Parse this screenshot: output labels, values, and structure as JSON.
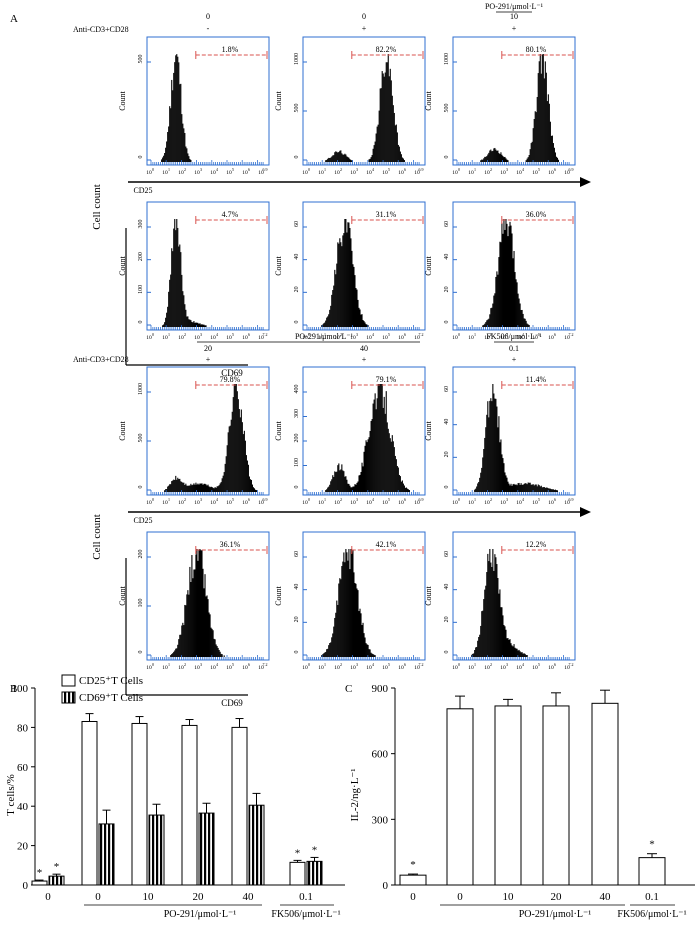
{
  "panel_a": {
    "letter": "A",
    "stim_label": "Anti-CD3+CD28",
    "cell_count_label": "Cell count",
    "count_label": "Count",
    "cd25_label": "CD25",
    "cd69_label": "CD69",
    "tick_exponents": [
      "0",
      "1",
      "2",
      "3",
      "4",
      "5",
      "6",
      "6.9"
    ],
    "tick_exponents_cd69": [
      "0",
      "1",
      "2",
      "3",
      "4",
      "5",
      "6",
      "7.2"
    ],
    "top_groups": [
      {
        "dose": "0",
        "stim": "-"
      },
      {
        "dose": "0",
        "stim": "+"
      },
      {
        "dose": "10",
        "stim": "+",
        "header": "PO-291/μmol·L⁻¹"
      }
    ],
    "bottom_header_po": "PO-291/μmol·L⁻¹",
    "bottom_header_fk": "FK506/μmol·L⁻¹",
    "bottom_groups": [
      {
        "dose": "20",
        "stim": "+"
      },
      {
        "dose": "40",
        "stim": "+"
      },
      {
        "dose": "0.1",
        "stim": "+"
      }
    ],
    "cd25_top": [
      {
        "pct": "1.8%",
        "yticks": [
          "0",
          "500"
        ]
      },
      {
        "pct": "82.2%",
        "yticks": [
          "0",
          "500",
          "1000"
        ]
      },
      {
        "pct": "80.1%",
        "yticks": [
          "0",
          "500",
          "1000"
        ]
      }
    ],
    "cd69_top": [
      {
        "pct": "4.7%",
        "yticks": [
          "0",
          "100",
          "200",
          "300"
        ]
      },
      {
        "pct": "31.1%",
        "yticks": [
          "0",
          "20",
          "40",
          "60"
        ]
      },
      {
        "pct": "36.0%",
        "yticks": [
          "0",
          "20",
          "40",
          "60"
        ]
      }
    ],
    "cd25_bottom": [
      {
        "pct": "79.8%",
        "yticks": [
          "0",
          "500",
          "1000"
        ]
      },
      {
        "pct": "79.1%",
        "yticks": [
          "0",
          "100",
          "200",
          "300",
          "400"
        ]
      },
      {
        "pct": "11.4%",
        "yticks": [
          "0",
          "20",
          "40",
          "60"
        ]
      }
    ],
    "cd69_bottom": [
      {
        "pct": "36.1%",
        "yticks": [
          "0",
          "100",
          "200"
        ]
      },
      {
        "pct": "42.1%",
        "yticks": [
          "0",
          "20",
          "40",
          "60"
        ]
      },
      {
        "pct": "12.2%",
        "yticks": [
          "0",
          "20",
          "40",
          "60"
        ]
      }
    ]
  },
  "chart_data": [
    {
      "type": "bar",
      "panel": "B",
      "ylabel": "T cells/%",
      "ylim": [
        0,
        100
      ],
      "yticks": [
        "0",
        "20",
        "40",
        "60",
        "80",
        "100"
      ],
      "categories": [
        "0",
        "0",
        "10",
        "20",
        "40",
        "0.1"
      ],
      "group_labels": [
        "PO-291/μmol·L⁻¹",
        "FK506/μmol·L⁻¹"
      ],
      "legend_position": "top-left",
      "series": [
        {
          "name": "CD25⁺T Cells",
          "values": [
            2,
            83,
            82,
            81,
            80,
            11.5
          ],
          "errors": [
            0.5,
            4,
            3.5,
            3,
            4.5,
            1
          ]
        },
        {
          "name": "CD69⁺T Cells",
          "values": [
            4.5,
            31,
            35.5,
            36.5,
            40.5,
            12
          ],
          "errors": [
            1,
            7,
            5.5,
            5,
            6,
            2
          ]
        }
      ],
      "significance": [
        "*",
        "*",
        "",
        "",
        "",
        "",
        "",
        "",
        "",
        "",
        "*",
        "*"
      ]
    },
    {
      "type": "bar",
      "panel": "C",
      "ylabel": "IL-2/ng·L⁻¹",
      "ylim": [
        0,
        900
      ],
      "yticks": [
        "0",
        "300",
        "600",
        "900"
      ],
      "categories": [
        "0",
        "0",
        "10",
        "20",
        "40",
        "0.1"
      ],
      "group_labels": [
        "PO-291/μmol·L⁻¹",
        "FK506/μmol·L⁻¹"
      ],
      "series": [
        {
          "values": [
            45,
            805,
            818,
            818,
            830,
            125
          ],
          "errors": [
            5,
            58,
            30,
            60,
            60,
            18
          ]
        }
      ],
      "significance": [
        "*",
        "",
        "",
        "",
        "",
        "*"
      ]
    }
  ]
}
